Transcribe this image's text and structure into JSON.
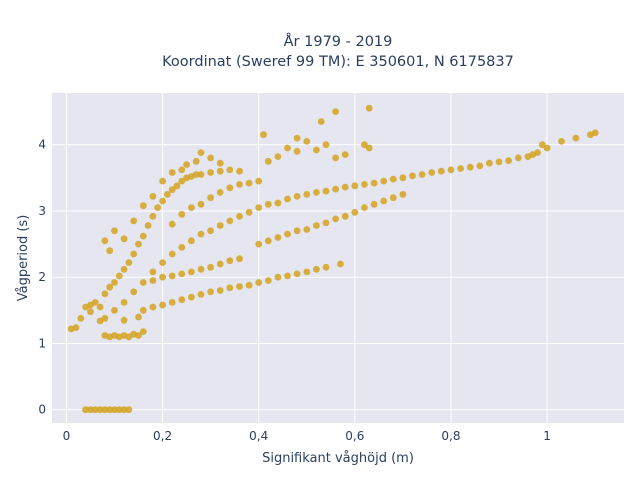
{
  "chart_data": {
    "type": "scatter",
    "title_line1": "År 1979 - 2019",
    "title_line2": "Koordinat (Sweref 99 TM): E 350601, N 6175837",
    "xlabel": "Signifikant våghöjd (m)",
    "ylabel": "Vågperiod (s)",
    "xlim": [
      -0.03,
      1.16
    ],
    "ylim": [
      -0.2,
      4.78
    ],
    "x_ticks": [
      {
        "value": 0,
        "label": "0"
      },
      {
        "value": 0.2,
        "label": "0,2"
      },
      {
        "value": 0.4,
        "label": "0,4"
      },
      {
        "value": 0.6,
        "label": "0,6"
      },
      {
        "value": 0.8,
        "label": "0,8"
      },
      {
        "value": 1,
        "label": "1"
      }
    ],
    "y_ticks": [
      {
        "value": 0,
        "label": "0"
      },
      {
        "value": 1,
        "label": "1"
      },
      {
        "value": 2,
        "label": "2"
      },
      {
        "value": 3,
        "label": "3"
      },
      {
        "value": 4,
        "label": "4"
      }
    ],
    "grid": true,
    "legend": "none",
    "colors": {
      "marker": "#D4A21E",
      "plot_bg": "#E5E6F0",
      "grid": "#ffffff"
    },
    "series": [
      {
        "points": [
          [
            0.04,
            0
          ],
          [
            0.05,
            0
          ],
          [
            0.06,
            0
          ],
          [
            0.07,
            0
          ],
          [
            0.08,
            0
          ],
          [
            0.09,
            0
          ],
          [
            0.1,
            0
          ],
          [
            0.11,
            0
          ],
          [
            0.12,
            0
          ],
          [
            0.13,
            0
          ],
          [
            0.01,
            1.22
          ],
          [
            0.02,
            1.24
          ],
          [
            0.03,
            1.38
          ],
          [
            0.04,
            1.55
          ],
          [
            0.05,
            1.58
          ],
          [
            0.06,
            1.62
          ],
          [
            0.05,
            1.48
          ],
          [
            0.07,
            1.34
          ],
          [
            0.08,
            1.12
          ],
          [
            0.09,
            1.1
          ],
          [
            0.1,
            1.12
          ],
          [
            0.11,
            1.1
          ],
          [
            0.12,
            1.12
          ],
          [
            0.13,
            1.1
          ],
          [
            0.14,
            1.14
          ],
          [
            0.15,
            1.12
          ],
          [
            0.16,
            1.18
          ],
          [
            0.07,
            1.55
          ],
          [
            0.08,
            1.75
          ],
          [
            0.09,
            1.85
          ],
          [
            0.1,
            1.92
          ],
          [
            0.11,
            2.02
          ],
          [
            0.12,
            2.12
          ],
          [
            0.13,
            2.22
          ],
          [
            0.14,
            2.35
          ],
          [
            0.15,
            2.5
          ],
          [
            0.16,
            2.62
          ],
          [
            0.17,
            2.78
          ],
          [
            0.18,
            2.92
          ],
          [
            0.19,
            3.05
          ],
          [
            0.2,
            3.15
          ],
          [
            0.21,
            3.25
          ],
          [
            0.22,
            3.32
          ],
          [
            0.23,
            3.38
          ],
          [
            0.24,
            3.45
          ],
          [
            0.25,
            3.5
          ],
          [
            0.26,
            3.52
          ],
          [
            0.27,
            3.55
          ],
          [
            0.28,
            3.55
          ],
          [
            0.3,
            3.58
          ],
          [
            0.32,
            3.6
          ],
          [
            0.34,
            3.62
          ],
          [
            0.36,
            3.6
          ],
          [
            0.08,
            1.38
          ],
          [
            0.1,
            1.5
          ],
          [
            0.12,
            1.62
          ],
          [
            0.14,
            1.78
          ],
          [
            0.16,
            1.92
          ],
          [
            0.18,
            2.08
          ],
          [
            0.2,
            2.22
          ],
          [
            0.22,
            2.35
          ],
          [
            0.24,
            2.45
          ],
          [
            0.26,
            2.55
          ],
          [
            0.28,
            2.65
          ],
          [
            0.3,
            2.7
          ],
          [
            0.32,
            2.78
          ],
          [
            0.34,
            2.85
          ],
          [
            0.36,
            2.92
          ],
          [
            0.38,
            2.98
          ],
          [
            0.4,
            3.05
          ],
          [
            0.42,
            3.1
          ],
          [
            0.44,
            3.12
          ],
          [
            0.46,
            3.18
          ],
          [
            0.48,
            3.22
          ],
          [
            0.5,
            3.25
          ],
          [
            0.52,
            3.28
          ],
          [
            0.54,
            3.3
          ],
          [
            0.56,
            3.33
          ],
          [
            0.58,
            3.36
          ],
          [
            0.6,
            3.38
          ],
          [
            0.62,
            3.4
          ],
          [
            0.64,
            3.42
          ],
          [
            0.66,
            3.45
          ],
          [
            0.68,
            3.48
          ],
          [
            0.7,
            3.5
          ],
          [
            0.72,
            3.53
          ],
          [
            0.74,
            3.55
          ],
          [
            0.76,
            3.58
          ],
          [
            0.78,
            3.6
          ],
          [
            0.8,
            3.62
          ],
          [
            0.82,
            3.64
          ],
          [
            0.84,
            3.66
          ],
          [
            0.86,
            3.68
          ],
          [
            0.88,
            3.72
          ],
          [
            0.9,
            3.74
          ],
          [
            0.92,
            3.76
          ],
          [
            0.94,
            3.8
          ],
          [
            0.96,
            3.82
          ],
          [
            0.98,
            3.88
          ],
          [
            1.0,
            3.95
          ],
          [
            1.03,
            4.05
          ],
          [
            1.06,
            4.1
          ],
          [
            1.09,
            4.15
          ],
          [
            1.1,
            4.18
          ],
          [
            0.97,
            3.85
          ],
          [
            0.99,
            4.0
          ],
          [
            0.16,
            1.5
          ],
          [
            0.18,
            1.55
          ],
          [
            0.2,
            1.58
          ],
          [
            0.22,
            1.62
          ],
          [
            0.24,
            1.66
          ],
          [
            0.26,
            1.7
          ],
          [
            0.28,
            1.74
          ],
          [
            0.3,
            1.78
          ],
          [
            0.32,
            1.8
          ],
          [
            0.34,
            1.84
          ],
          [
            0.36,
            1.86
          ],
          [
            0.38,
            1.88
          ],
          [
            0.4,
            1.92
          ],
          [
            0.42,
            1.95
          ],
          [
            0.44,
            2.0
          ],
          [
            0.46,
            2.02
          ],
          [
            0.48,
            2.05
          ],
          [
            0.5,
            2.08
          ],
          [
            0.52,
            2.12
          ],
          [
            0.54,
            2.15
          ],
          [
            0.57,
            2.2
          ],
          [
            0.12,
            1.35
          ],
          [
            0.15,
            1.4
          ],
          [
            0.18,
            1.95
          ],
          [
            0.2,
            2.0
          ],
          [
            0.22,
            2.02
          ],
          [
            0.24,
            2.05
          ],
          [
            0.26,
            2.08
          ],
          [
            0.28,
            2.12
          ],
          [
            0.3,
            2.15
          ],
          [
            0.32,
            2.2
          ],
          [
            0.34,
            2.25
          ],
          [
            0.36,
            2.28
          ],
          [
            0.22,
            2.8
          ],
          [
            0.24,
            2.95
          ],
          [
            0.26,
            3.05
          ],
          [
            0.28,
            3.1
          ],
          [
            0.3,
            3.2
          ],
          [
            0.32,
            3.28
          ],
          [
            0.34,
            3.35
          ],
          [
            0.36,
            3.4
          ],
          [
            0.38,
            3.42
          ],
          [
            0.4,
            3.45
          ],
          [
            0.42,
            3.75
          ],
          [
            0.44,
            3.82
          ],
          [
            0.46,
            3.95
          ],
          [
            0.48,
            3.9
          ],
          [
            0.5,
            4.05
          ],
          [
            0.52,
            3.92
          ],
          [
            0.54,
            4.0
          ],
          [
            0.56,
            3.8
          ],
          [
            0.58,
            3.85
          ],
          [
            0.41,
            4.15
          ],
          [
            0.48,
            4.1
          ],
          [
            0.53,
            4.35
          ],
          [
            0.56,
            4.5
          ],
          [
            0.63,
            4.55
          ],
          [
            0.62,
            4.0
          ],
          [
            0.63,
            3.95
          ],
          [
            0.08,
            2.55
          ],
          [
            0.09,
            2.4
          ],
          [
            0.1,
            2.7
          ],
          [
            0.12,
            2.58
          ],
          [
            0.14,
            2.85
          ],
          [
            0.16,
            3.08
          ],
          [
            0.18,
            3.22
          ],
          [
            0.2,
            3.45
          ],
          [
            0.22,
            3.58
          ],
          [
            0.24,
            3.62
          ],
          [
            0.25,
            3.7
          ],
          [
            0.27,
            3.75
          ],
          [
            0.28,
            3.88
          ],
          [
            0.3,
            3.8
          ],
          [
            0.32,
            3.72
          ],
          [
            0.4,
            2.5
          ],
          [
            0.42,
            2.55
          ],
          [
            0.44,
            2.6
          ],
          [
            0.46,
            2.65
          ],
          [
            0.48,
            2.7
          ],
          [
            0.5,
            2.72
          ],
          [
            0.52,
            2.78
          ],
          [
            0.54,
            2.82
          ],
          [
            0.56,
            2.88
          ],
          [
            0.58,
            2.92
          ],
          [
            0.6,
            2.98
          ],
          [
            0.62,
            3.05
          ],
          [
            0.64,
            3.1
          ],
          [
            0.66,
            3.15
          ],
          [
            0.68,
            3.2
          ],
          [
            0.7,
            3.25
          ]
        ]
      }
    ]
  }
}
